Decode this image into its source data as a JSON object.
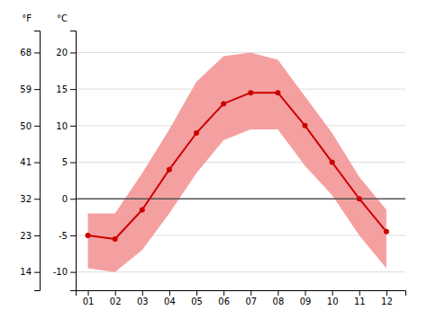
{
  "chart_data": {
    "type": "line",
    "x": [
      1,
      2,
      3,
      4,
      5,
      6,
      7,
      8,
      9,
      10,
      11,
      12
    ],
    "xlim": [
      0.55,
      12.7
    ],
    "xticks": [
      {
        "value": 1,
        "label": "01"
      },
      {
        "value": 2,
        "label": "02"
      },
      {
        "value": 3,
        "label": "03"
      },
      {
        "value": 4,
        "label": "04"
      },
      {
        "value": 5,
        "label": "05"
      },
      {
        "value": 6,
        "label": "06"
      },
      {
        "value": 7,
        "label": "07"
      },
      {
        "value": 8,
        "label": "08"
      },
      {
        "value": 9,
        "label": "09"
      },
      {
        "value": 10,
        "label": "10"
      },
      {
        "value": 11,
        "label": "11"
      },
      {
        "value": 12,
        "label": "12"
      }
    ],
    "ylim": [
      -12.5,
      23
    ],
    "yticks": [
      20,
      15,
      10,
      5,
      0,
      -5,
      -10
    ],
    "ylabel": "°C",
    "y2lim": [
      9.5,
      73.4
    ],
    "y2ticks": [
      68,
      59,
      50,
      41,
      32,
      23,
      14
    ],
    "y2label": "°F",
    "grid": true,
    "series": [
      {
        "type": "area",
        "color": "#f5a0a0",
        "values": [
          -2.0,
          -2.0,
          3.5,
          9.5,
          16.0,
          19.5,
          20.0,
          19.0,
          14.0,
          9.0,
          3.0,
          -1.5
        ],
        "low": [
          -9.5,
          -10.0,
          -7.0,
          -2.0,
          3.5,
          8.0,
          9.5,
          9.5,
          4.5,
          0.5,
          -5.0,
          -9.5
        ]
      },
      {
        "type": "line",
        "color": "#cc0000",
        "marker": "circle",
        "values": [
          -5.0,
          -5.5,
          -1.5,
          4.0,
          9.0,
          13.0,
          14.5,
          14.5,
          10.0,
          5.0,
          0.0,
          -4.5
        ]
      }
    ]
  }
}
